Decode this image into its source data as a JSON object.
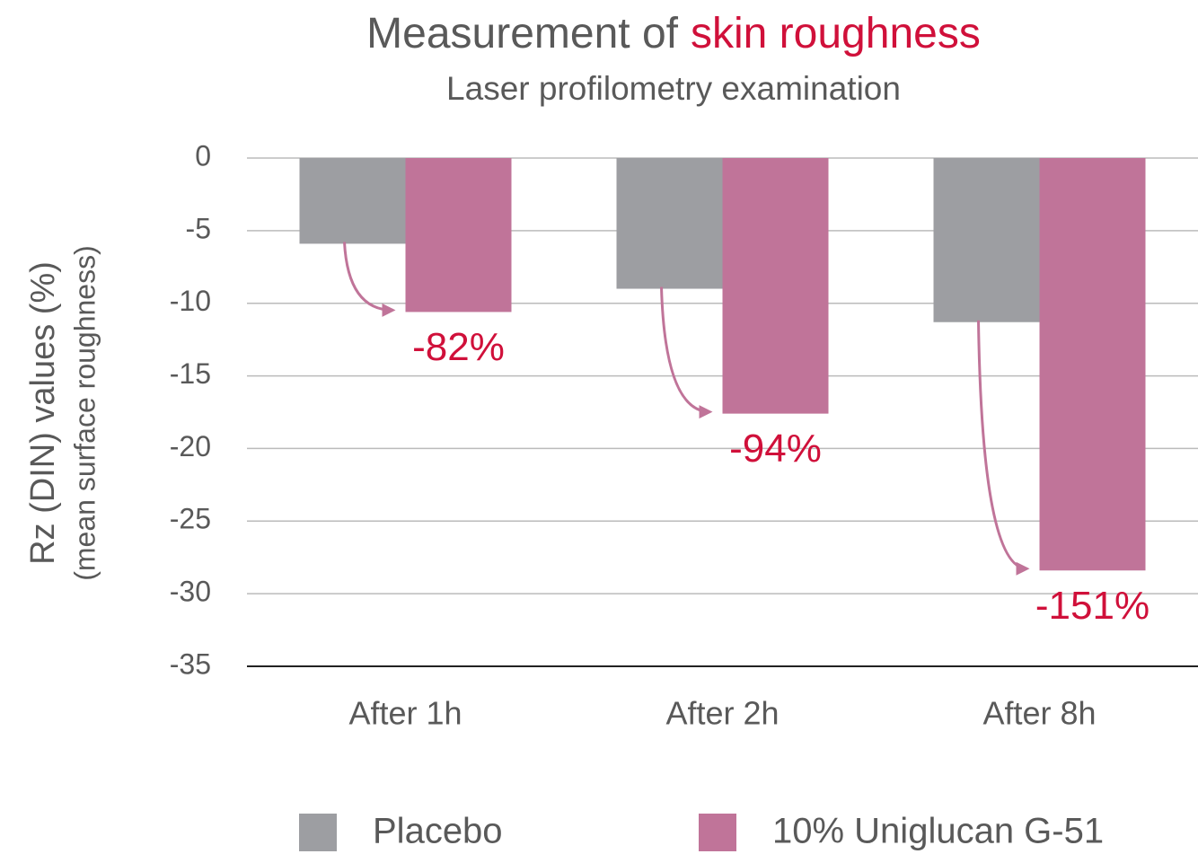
{
  "chart_data": {
    "type": "bar",
    "title": [
      "Measurement of",
      "skin roughness"
    ],
    "subtitle": "Laser profilometry examination",
    "ylabel": [
      "Rz (DIN) values (%)",
      "(mean surface roughness)"
    ],
    "categories": [
      "After 1h",
      "After 2h",
      "After 8h"
    ],
    "series": [
      {
        "name": "Placebo",
        "color": "#9d9ea2",
        "values": [
          -5.9,
          -9.0,
          -11.3
        ]
      },
      {
        "name": "10% Uniglucan G-51",
        "color": "#c07499",
        "values": [
          -10.6,
          -17.6,
          -28.4
        ]
      }
    ],
    "annotations": [
      "-82%",
      "-94%",
      "-151%"
    ],
    "ylim": [
      -35,
      0
    ],
    "yticks": [
      0,
      -5,
      -10,
      -15,
      -20,
      -25,
      -30,
      -35
    ],
    "grid": true,
    "legend": "bottom"
  }
}
